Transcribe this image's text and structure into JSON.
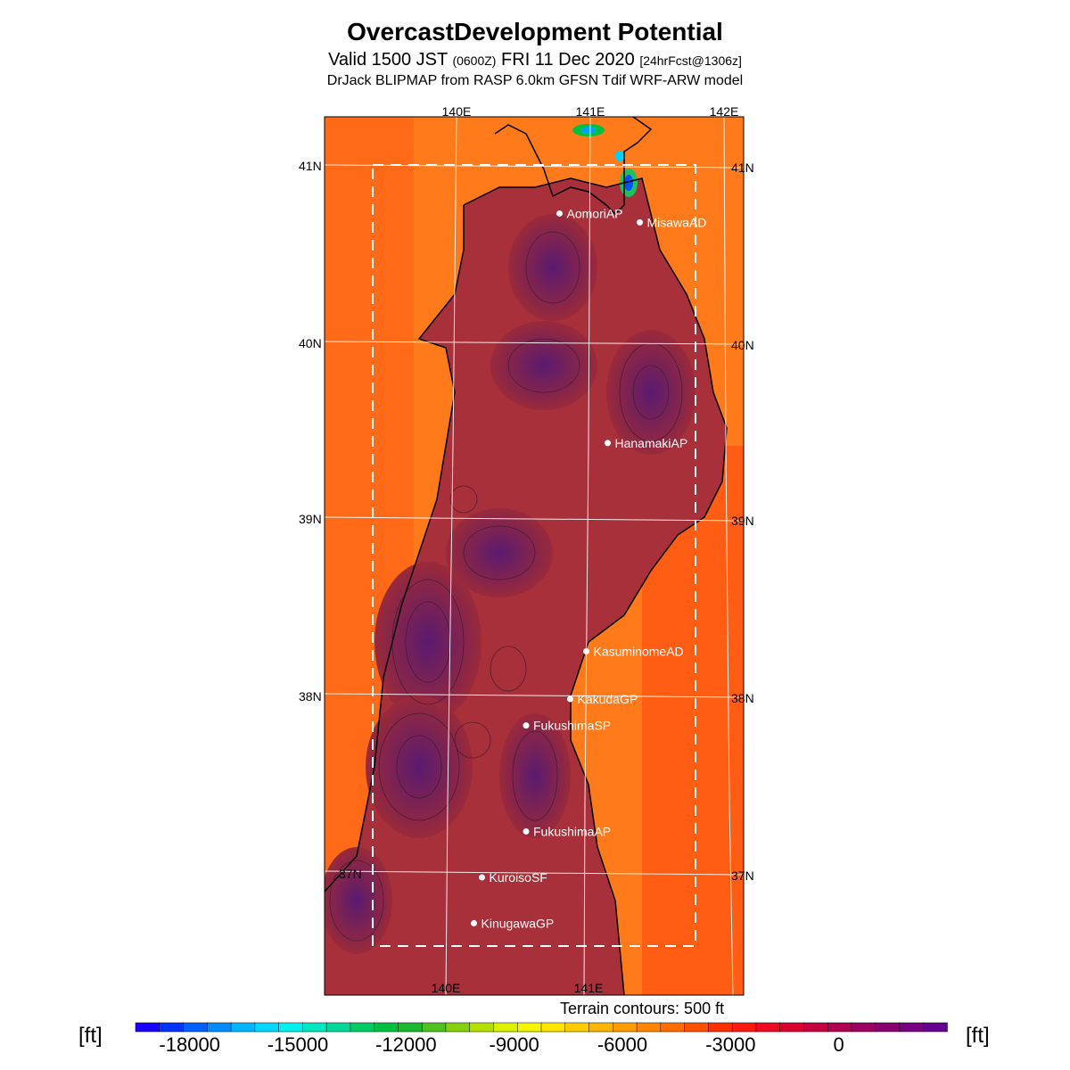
{
  "title": "OvercastDevelopment Potential",
  "subtitle": {
    "part1": "Valid 1500 JST",
    "part2": "(0600Z)",
    "part3": "FRI 11 Dec 2020",
    "part4": "[24hrFcst@1306z]"
  },
  "model_line": "DrJack BLIPMAP from RASP 6.0km GFSN Tdif WRF-ARW model",
  "longitude_labels": {
    "top": [
      "140E",
      "141E",
      "142E"
    ],
    "bottom": [
      "140E",
      "141E"
    ]
  },
  "latitude_labels": [
    "41N",
    "40N",
    "39N",
    "38N",
    "37N"
  ],
  "stations": [
    {
      "name": "AomoriAP",
      "lon": 140.77,
      "lat": 40.73
    },
    {
      "name": "MisawaAD",
      "lon": 141.37,
      "lat": 40.68
    },
    {
      "name": "HanamakiAP",
      "lon": 141.13,
      "lat": 39.43
    },
    {
      "name": "KasuminomeAD",
      "lon": 140.97,
      "lat": 38.25
    },
    {
      "name": "KakudaGP",
      "lon": 140.85,
      "lat": 37.98
    },
    {
      "name": "FukushimaSP",
      "lon": 140.52,
      "lat": 37.83
    },
    {
      "name": "FukushimaAP",
      "lon": 140.52,
      "lat": 37.23
    },
    {
      "name": "KuroisoSF",
      "lon": 140.19,
      "lat": 36.97
    },
    {
      "name": "KinugawaGP",
      "lon": 140.13,
      "lat": 36.71
    }
  ],
  "legend": {
    "unit_left": "[ft]",
    "unit_right": "[ft]",
    "ticks": [
      "-18000",
      "-15000",
      "-12000",
      "-9000",
      "-6000",
      "-3000",
      "0"
    ],
    "tick_values": [
      -18000,
      -15000,
      -12000,
      -9000,
      -6000,
      -3000,
      0
    ],
    "range": [
      -19500,
      3000
    ],
    "colors": [
      "#1a00ff",
      "#0033ff",
      "#0060ff",
      "#008cff",
      "#00b4ff",
      "#00d8ff",
      "#00f0f0",
      "#00e6c0",
      "#00d99a",
      "#00cc66",
      "#00c040",
      "#1ab830",
      "#50c020",
      "#86d010",
      "#b4e000",
      "#dcf000",
      "#f5f500",
      "#ffe600",
      "#ffcc00",
      "#ffb400",
      "#ff9c00",
      "#ff8400",
      "#ff6c00",
      "#ff5000",
      "#ff3000",
      "#ff1a10",
      "#ee0a20",
      "#da0030",
      "#c40040",
      "#b00050",
      "#9c0060",
      "#880070",
      "#760080",
      "#640090"
    ]
  },
  "contour_note": "Terrain contours: 500 ft",
  "colors": {
    "background": "#ff7a1a",
    "land": "#9a2a3a",
    "dashed_box": "#ffffff"
  }
}
